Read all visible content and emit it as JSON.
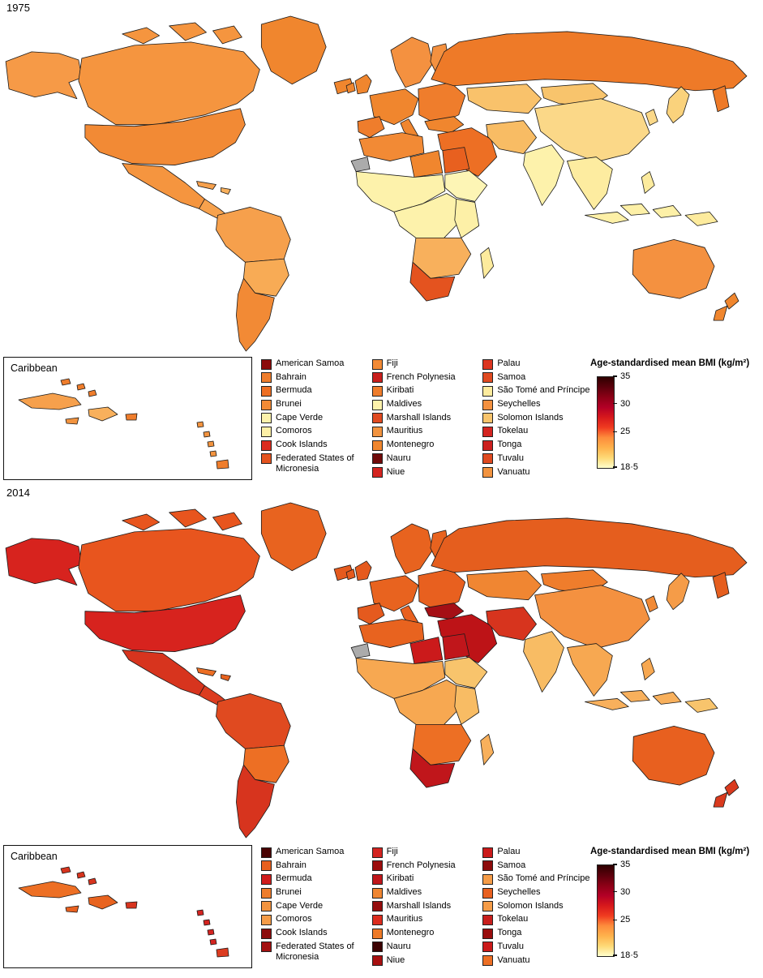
{
  "scale": {
    "title": "Age-standardised mean BMI (kg/m²)",
    "gradient": [
      "#2e0000",
      "#5c000c",
      "#8c0016",
      "#b30026",
      "#d7191c",
      "#f03b20",
      "#fd8d3c",
      "#feb24c",
      "#fed976",
      "#ffffcc"
    ],
    "no_data_color": "#ababab",
    "ticks": [
      {
        "label": "35",
        "pos": 0
      },
      {
        "label": "30",
        "pos": 30
      },
      {
        "label": "25",
        "pos": 61
      },
      {
        "label": "18·5",
        "pos": 100
      }
    ]
  },
  "panels": [
    {
      "year": "1975",
      "inset_label": "Caribbean",
      "legend_columns": [
        [
          {
            "label": "American Samoa",
            "color": "#8c0b0b"
          },
          {
            "label": "Bahrain",
            "color": "#ef7d2c"
          },
          {
            "label": "Bermuda",
            "color": "#ed6f24"
          },
          {
            "label": "Brunei",
            "color": "#f28a35"
          },
          {
            "label": "Cape Verde",
            "color": "#fdf2ab"
          },
          {
            "label": "Comoros",
            "color": "#fdf0a7"
          },
          {
            "label": "Cook Islands",
            "color": "#dc2c1e"
          },
          {
            "label": "Federated States of Micronesia",
            "color": "#e4531f"
          }
        ],
        [
          {
            "label": "Fiji",
            "color": "#f28a35"
          },
          {
            "label": "French Polynesia",
            "color": "#c81e1c"
          },
          {
            "label": "Kiribati",
            "color": "#ef7d2c"
          },
          {
            "label": "Maldives",
            "color": "#fdf2ab"
          },
          {
            "label": "Marshall Islands",
            "color": "#e04a20"
          },
          {
            "label": "Mauritius",
            "color": "#f2933f"
          },
          {
            "label": "Montenegro",
            "color": "#f0862e"
          },
          {
            "label": "Nauru",
            "color": "#700a0a"
          },
          {
            "label": "Niue",
            "color": "#d42420"
          }
        ],
        [
          {
            "label": "Palau",
            "color": "#dc3520"
          },
          {
            "label": "Samoa",
            "color": "#e04a20"
          },
          {
            "label": "São Tomé and Príncipe",
            "color": "#fdeb9d"
          },
          {
            "label": "Seychelles",
            "color": "#f49140"
          },
          {
            "label": "Solomon Islands",
            "color": "#f8c46c"
          },
          {
            "label": "Tokelau",
            "color": "#d42420"
          },
          {
            "label": "Tonga",
            "color": "#cc201e"
          },
          {
            "label": "Tuvalu",
            "color": "#e04a20"
          },
          {
            "label": "Vanuatu",
            "color": "#f2933f"
          }
        ]
      ],
      "regions": {
        "alaska": "#f69a47",
        "canada": "#f5953f",
        "greenland": "#f0862e",
        "iceland": "#f0862e",
        "usa": "#f28a35",
        "mexico": "#f5953f",
        "central_america": "#f7a24d",
        "cuba": "#f6a04c",
        "hispaniola": "#f8b05c",
        "sa_north": "#f6a04c",
        "brazil": "#f8ab55",
        "southern_cone": "#f28a35",
        "uk": "#f0862e",
        "scandinavia": "#f49140",
        "west_europe": "#f0862e",
        "iberia": "#ef7d2c",
        "italy": "#f0862e",
        "east_europe": "#ef7d2c",
        "russia": "#ee7a28",
        "turkey": "#f0862e",
        "middle_east": "#ed6f24",
        "iran": "#f8bc64",
        "central_asia": "#f9c26b",
        "mongolia": "#f8c46c",
        "china": "#fbd888",
        "korea": "#fbd888",
        "japan": "#fad27c",
        "india": "#fdf2ab",
        "se_asia": "#fdeca0",
        "philippines": "#fceb9e",
        "indonesia": "#fdf0a7",
        "png": "#fdeb9d",
        "australia": "#f49140",
        "nz": "#f0862e",
        "north_africa_west": "#f28a35",
        "libya": "#f0862e",
        "egypt": "#e8601f",
        "western_sahara": "#ababab",
        "west_africa": "#fdf2ab",
        "horn": "#fdf5b5",
        "central_africa": "#fdf2ab",
        "east_africa": "#fdf0a7",
        "southern_africa": "#f8b05c",
        "south_africa": "#e4531f",
        "madagascar": "#fdeb9d"
      },
      "inset_regions": {
        "cuba": "#f6a04c",
        "jamaica": "#f2933f",
        "hispaniola": "#f8b05c",
        "puerto_rico": "#ef7d2c",
        "bahamas": "#ef7d2c",
        "lesser_antilles": "#f2933f",
        "trinidad": "#ef7d2c"
      }
    },
    {
      "year": "2014",
      "inset_label": "Caribbean",
      "legend_columns": [
        [
          {
            "label": "American Samoa",
            "color": "#4a0404"
          },
          {
            "label": "Bahrain",
            "color": "#e8601f"
          },
          {
            "label": "Bermuda",
            "color": "#d01c1c"
          },
          {
            "label": "Brunei",
            "color": "#ef7d2c"
          },
          {
            "label": "Cape Verde",
            "color": "#f2933f"
          },
          {
            "label": "Comoros",
            "color": "#f59c48"
          },
          {
            "label": "Cook Islands",
            "color": "#8c0b0b"
          },
          {
            "label": "Federated States of Micronesia",
            "color": "#a31010"
          }
        ],
        [
          {
            "label": "Fiji",
            "color": "#d42420"
          },
          {
            "label": "French Polynesia",
            "color": "#9c0d0d"
          },
          {
            "label": "Kiribati",
            "color": "#c0161b"
          },
          {
            "label": "Maldives",
            "color": "#f08632"
          },
          {
            "label": "Marshall Islands",
            "color": "#950d0d"
          },
          {
            "label": "Mauritius",
            "color": "#dc2c1e"
          },
          {
            "label": "Montenegro",
            "color": "#ee7a28"
          },
          {
            "label": "Nauru",
            "color": "#3d0303"
          },
          {
            "label": "Niue",
            "color": "#a81010"
          }
        ],
        [
          {
            "label": "Palau",
            "color": "#cb1a1a"
          },
          {
            "label": "Samoa",
            "color": "#8c0b0b"
          },
          {
            "label": "São Tomé and Príncipe",
            "color": "#f59c48"
          },
          {
            "label": "Seychelles",
            "color": "#e8601f"
          },
          {
            "label": "Solomon Islands",
            "color": "#f59c48"
          },
          {
            "label": "Tokelau",
            "color": "#c81e1c"
          },
          {
            "label": "Tonga",
            "color": "#990d0d"
          },
          {
            "label": "Tuvalu",
            "color": "#cb1a1a"
          },
          {
            "label": "Vanuatu",
            "color": "#ed6f24"
          }
        ]
      ],
      "regions": {
        "alaska": "#d7231e",
        "canada": "#e8551e",
        "greenland": "#e8631f",
        "iceland": "#e55a1e",
        "usa": "#d7231e",
        "mexico": "#d7341e",
        "central_america": "#dc3c20",
        "cuba": "#ed6f24",
        "hispaniola": "#e8631f",
        "sa_north": "#e04a20",
        "brazil": "#ed6f24",
        "southern_cone": "#d7341e",
        "uk": "#e55a1e",
        "scandinavia": "#e8631f",
        "west_europe": "#e8631f",
        "iberia": "#e55a1e",
        "italy": "#e8601f",
        "east_europe": "#e8601f",
        "russia": "#e55e1e",
        "turkey": "#a50f15",
        "middle_east": "#bd1317",
        "iran": "#d7341e",
        "central_asia": "#f08632",
        "mongolia": "#ef7d2c",
        "china": "#f49140",
        "korea": "#f28a35",
        "japan": "#f59c48",
        "india": "#f8bc64",
        "se_asia": "#f7a851",
        "philippines": "#f7a851",
        "indonesia": "#f8b05c",
        "png": "#f8c46c",
        "australia": "#e8601f",
        "nz": "#da3a1e",
        "north_africa_west": "#e8631f",
        "libya": "#cb1a1b",
        "egypt": "#c0161b",
        "western_sahara": "#ababab",
        "west_africa": "#f7a851",
        "horn": "#f8c46c",
        "central_africa": "#f7a851",
        "east_africa": "#f8bc64",
        "southern_africa": "#ed6f24",
        "south_africa": "#c0161b",
        "madagascar": "#f8b05c"
      },
      "inset_regions": {
        "cuba": "#ed6f24",
        "jamaica": "#e8601f",
        "hispaniola": "#e8631f",
        "puerto_rico": "#d7341e",
        "bahamas": "#d7341e",
        "lesser_antilles": "#d42420",
        "trinidad": "#dc3c20"
      }
    }
  ]
}
